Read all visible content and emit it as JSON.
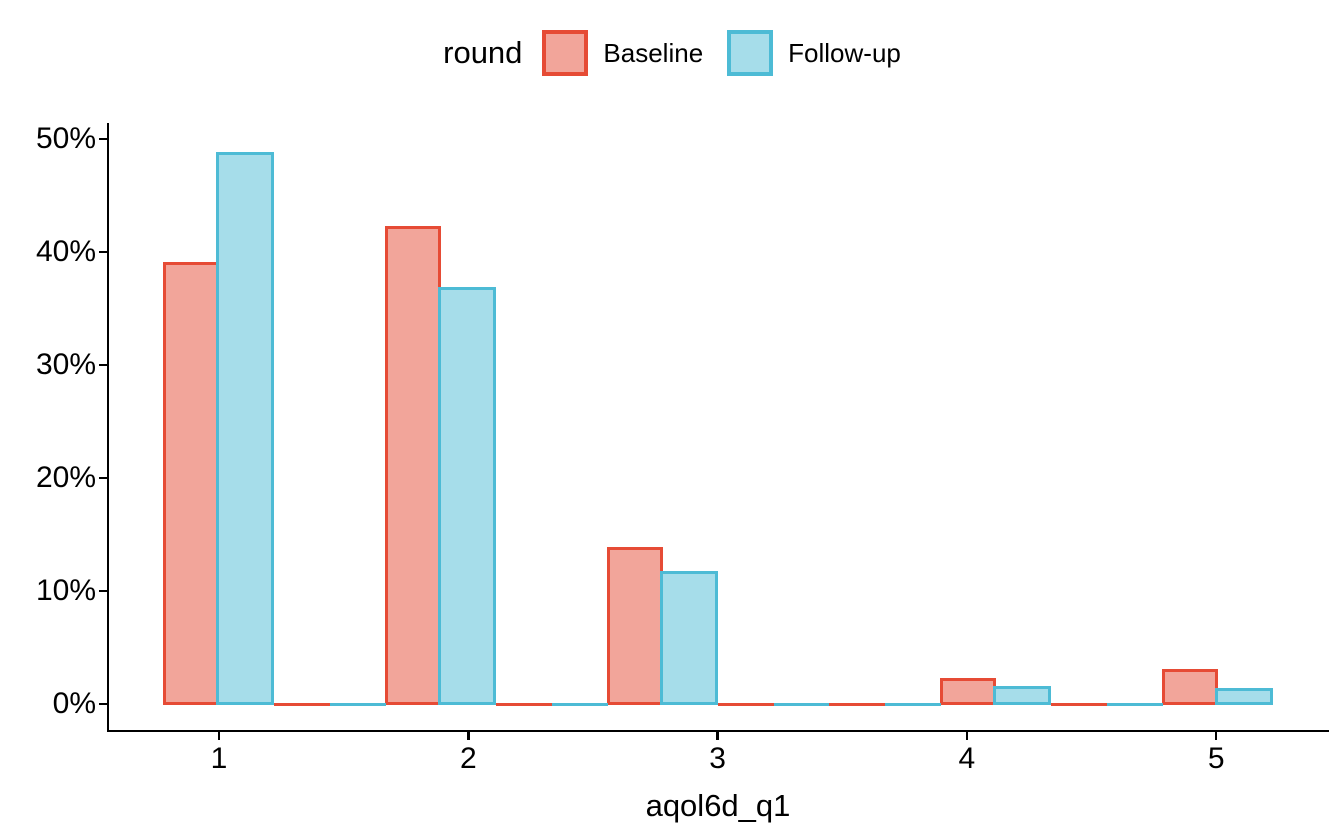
{
  "chart_data": {
    "type": "bar",
    "title": "",
    "xlabel": "aqol6d_q1",
    "ylabel": "",
    "categories": [
      "1",
      "2",
      "3",
      "4",
      "5"
    ],
    "series": [
      {
        "name": "Baseline",
        "values": [
          39.0,
          42.2,
          13.8,
          2.2,
          3.0
        ],
        "stroke": "#E64B35",
        "fill": "rgba(230,75,53,0.5)"
      },
      {
        "name": "Follow-up",
        "values": [
          48.7,
          36.8,
          11.6,
          1.5,
          1.3
        ],
        "stroke": "#4DBBD5",
        "fill": "rgba(77,187,213,0.5)"
      }
    ],
    "ylim": [
      0,
      50
    ],
    "yticks": {
      "values": [
        0,
        10,
        20,
        30,
        40,
        50
      ],
      "labels": [
        "0%",
        "10%",
        "20%",
        "30%",
        "40%",
        "50%"
      ]
    },
    "grid": false,
    "legend": {
      "title": "round",
      "position": "top",
      "entries": [
        "Baseline",
        "Follow-up"
      ]
    },
    "dodge_layout": {
      "n_slots": 20,
      "group_slot_starts": [
        0,
        4,
        8,
        14,
        18
      ],
      "zero_filler_slots": [
        2,
        3,
        6,
        7,
        10,
        11,
        12,
        13,
        16,
        17
      ]
    },
    "axis_color": "#000000"
  }
}
